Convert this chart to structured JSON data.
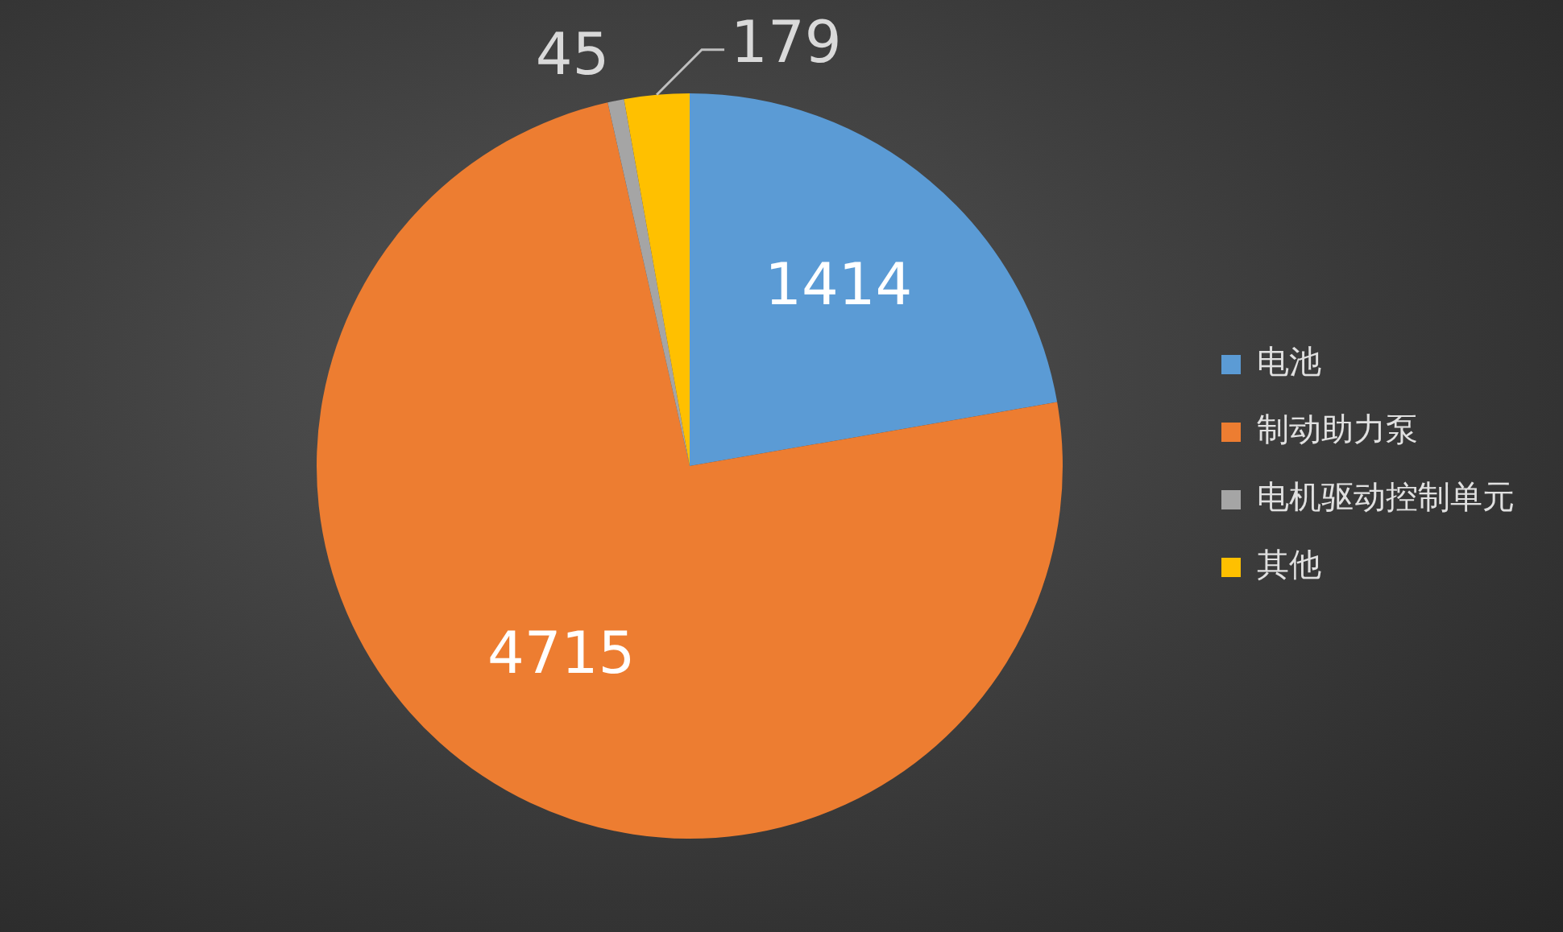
{
  "chart_data": {
    "type": "pie",
    "categories": [
      "电池",
      "制动助力泵",
      "电机驱动控制单元",
      "其他"
    ],
    "values": [
      1414,
      4715,
      45,
      179
    ],
    "colors": [
      "#5b9bd5",
      "#ed7d31",
      "#a5a5a5",
      "#ffc000"
    ],
    "data_labels": true,
    "legend": "right"
  }
}
